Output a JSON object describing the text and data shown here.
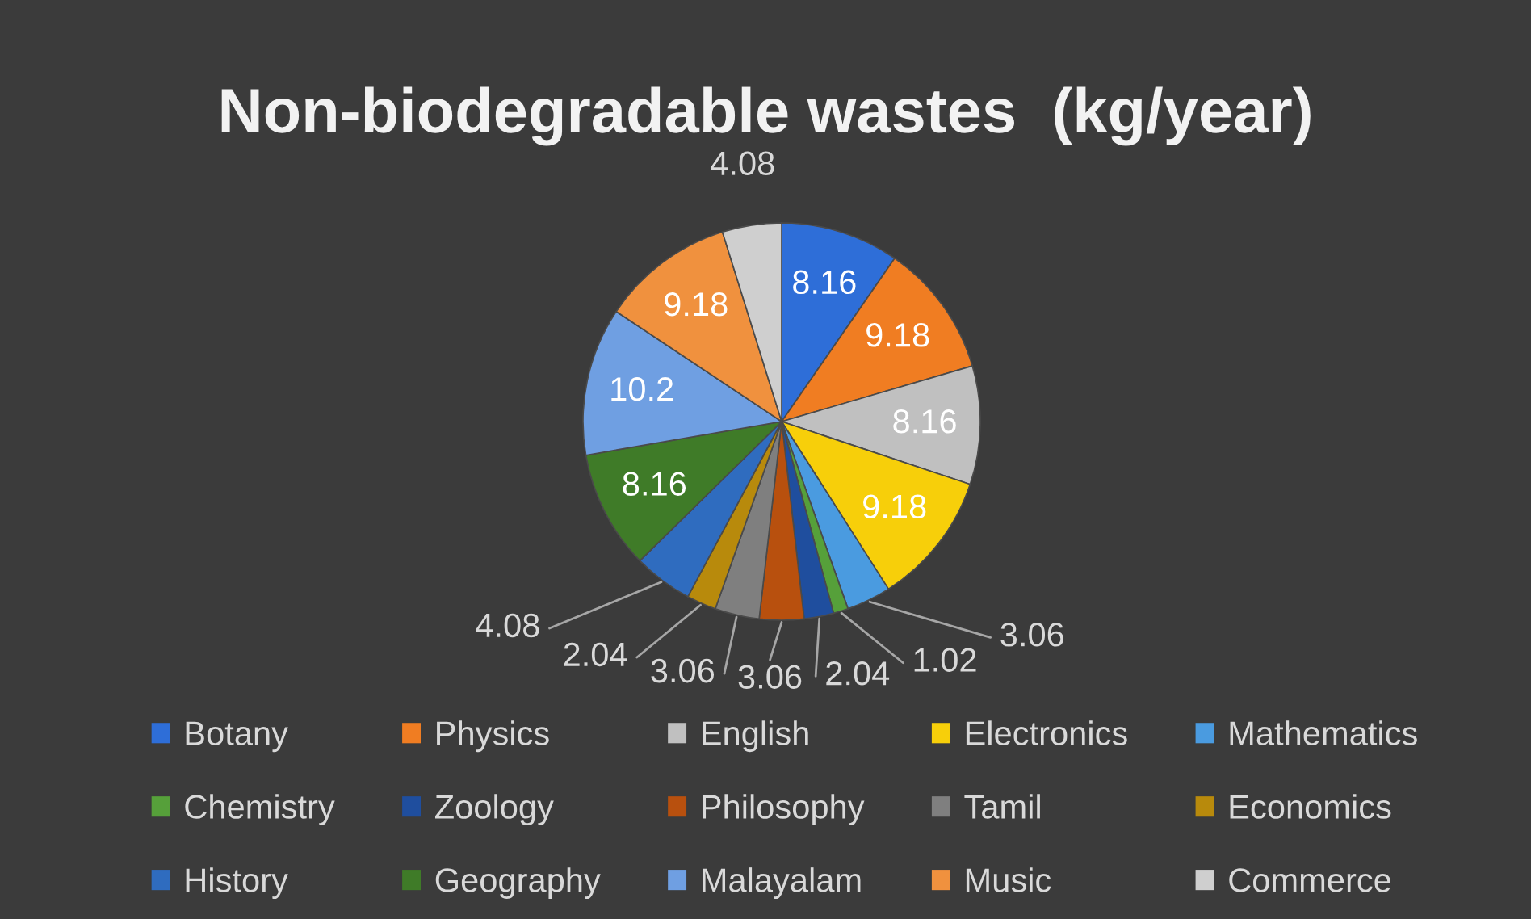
{
  "chart_data": {
    "type": "pie",
    "title": "Non-biodegradable wastes  (kg/year)",
    "categories": [
      "Botany",
      "Physics",
      "English",
      "Electronics",
      "Mathematics",
      "Chemistry",
      "Zoology",
      "Philosophy",
      "Tamil",
      "Economics",
      "History",
      "Geography",
      "Malayalam",
      "Music",
      "Commerce"
    ],
    "values": [
      8.16,
      9.18,
      8.16,
      9.18,
      3.06,
      1.02,
      2.04,
      3.06,
      3.06,
      2.04,
      4.08,
      8.16,
      10.2,
      9.18,
      4.08
    ],
    "colors": [
      "#2e6ed8",
      "#f07d22",
      "#c0c0c0",
      "#f7cf0a",
      "#4a9be0",
      "#56a03a",
      "#1f4e9e",
      "#b8500e",
      "#7f7f7f",
      "#b88a0c",
      "#2f6cbf",
      "#3f7b28",
      "#6f9fe2",
      "#f0913e",
      "#cfcfcf"
    ],
    "data_labels": true,
    "legend": "bottom"
  }
}
